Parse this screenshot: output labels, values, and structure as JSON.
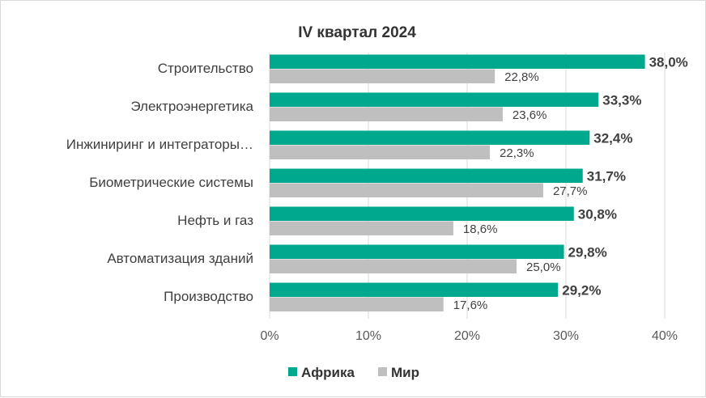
{
  "chart_data": {
    "type": "bar",
    "orientation": "horizontal",
    "title": "IV квартал 2024",
    "categories": [
      "Строительство",
      "Электроэнергетика",
      "Инжиниринг и интеграторы…",
      "Биометрические системы",
      "Нефть и газ",
      "Автоматизация зданий",
      "Производство"
    ],
    "series": [
      {
        "name": "Африка",
        "color": "#00a88e",
        "values": [
          38.0,
          33.3,
          32.4,
          31.7,
          30.8,
          29.8,
          29.2
        ],
        "labels": [
          "38,0%",
          "33,3%",
          "32,4%",
          "31,7%",
          "30,8%",
          "29,8%",
          "29,2%"
        ]
      },
      {
        "name": "Мир",
        "color": "#bfbfbf",
        "values": [
          22.8,
          23.6,
          22.3,
          27.7,
          18.6,
          25.0,
          17.6
        ],
        "labels": [
          "22,8%",
          "23,6%",
          "22,3%",
          "27,7%",
          "18,6%",
          "25,0%",
          "17,6%"
        ]
      }
    ],
    "xlim": [
      0,
      40
    ],
    "xticks": [
      0,
      10,
      20,
      30,
      40
    ],
    "xtick_labels": [
      "0%",
      "10%",
      "20%",
      "30%",
      "40%"
    ],
    "grid": "vertical",
    "legend_position": "bottom"
  }
}
